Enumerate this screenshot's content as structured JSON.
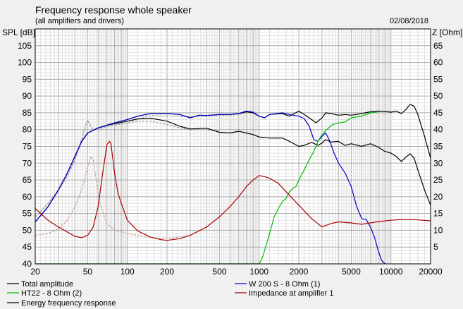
{
  "chart_data": {
    "type": "line",
    "title": "Frequency response whole speaker",
    "subtitle": "(all amplifiers and drivers)",
    "date": "02/08/2018",
    "ylabel_left": "SPL [dB]",
    "ylabel_right": "Z [Ohm]",
    "x_scale": "log",
    "xlim": [
      20,
      20000
    ],
    "ylim_left": [
      40,
      110
    ],
    "ylim_right": [
      0,
      70
    ],
    "x_ticks": [
      20,
      50,
      100,
      200,
      500,
      1000,
      2000,
      5000,
      10000,
      20000
    ],
    "x_tick_labels": [
      "20",
      "50",
      "100",
      "200",
      "500",
      "1000",
      "2000",
      "5000",
      "10000",
      "20000"
    ],
    "y_left_ticks": [
      40,
      45,
      50,
      55,
      60,
      65,
      70,
      75,
      80,
      85,
      90,
      95,
      100,
      105
    ],
    "y_right_ticks": [
      5,
      10,
      15,
      20,
      25,
      30,
      35,
      40,
      45,
      50,
      55,
      60,
      65
    ],
    "grid": true,
    "legend_position": "bottom",
    "series": [
      {
        "name": "Total amplitude",
        "color": "#000000",
        "axis": "left",
        "points": [
          [
            20,
            52.5
          ],
          [
            25,
            57
          ],
          [
            30,
            62
          ],
          [
            35,
            67
          ],
          [
            40,
            72
          ],
          [
            45,
            76.5
          ],
          [
            50,
            79
          ],
          [
            60,
            80.5
          ],
          [
            70,
            81.3
          ],
          [
            80,
            82
          ],
          [
            100,
            83
          ],
          [
            120,
            84
          ],
          [
            150,
            84.8
          ],
          [
            200,
            84.8
          ],
          [
            250,
            84.5
          ],
          [
            300,
            83.5
          ],
          [
            350,
            84.3
          ],
          [
            400,
            84.2
          ],
          [
            500,
            84.5
          ],
          [
            600,
            84.5
          ],
          [
            700,
            84.8
          ],
          [
            800,
            85.3
          ],
          [
            900,
            85
          ],
          [
            1000,
            84
          ],
          [
            1100,
            83.5
          ],
          [
            1200,
            84.5
          ],
          [
            1500,
            84.8
          ],
          [
            1700,
            84
          ],
          [
            2000,
            85.5
          ],
          [
            2200,
            84.5
          ],
          [
            2500,
            83
          ],
          [
            2700,
            82
          ],
          [
            3000,
            83.5
          ],
          [
            3200,
            85
          ],
          [
            3500,
            84.8
          ],
          [
            4000,
            84.3
          ],
          [
            4500,
            84.5
          ],
          [
            5000,
            84.3
          ],
          [
            6000,
            84.8
          ],
          [
            7000,
            85.3
          ],
          [
            8000,
            85.5
          ],
          [
            9000,
            85.4
          ],
          [
            10000,
            85.2
          ],
          [
            11000,
            85.5
          ],
          [
            12000,
            84.8
          ],
          [
            13000,
            86
          ],
          [
            14000,
            87.5
          ],
          [
            15000,
            87
          ],
          [
            16000,
            84.5
          ],
          [
            18000,
            78
          ],
          [
            20000,
            71.5
          ]
        ]
      },
      {
        "name": "W 200 S - 8 Ohm (1)",
        "color": "#0000cc",
        "axis": "left",
        "points": [
          [
            20,
            52.5
          ],
          [
            25,
            57
          ],
          [
            30,
            62
          ],
          [
            35,
            67
          ],
          [
            40,
            72
          ],
          [
            45,
            76.5
          ],
          [
            50,
            79
          ],
          [
            60,
            80.5
          ],
          [
            70,
            81.3
          ],
          [
            80,
            82
          ],
          [
            100,
            83
          ],
          [
            120,
            84
          ],
          [
            150,
            84.8
          ],
          [
            200,
            84.8
          ],
          [
            250,
            84.5
          ],
          [
            300,
            83.5
          ],
          [
            350,
            84.3
          ],
          [
            400,
            84.2
          ],
          [
            500,
            84.5
          ],
          [
            600,
            84.5
          ],
          [
            700,
            84.8
          ],
          [
            800,
            85.5
          ],
          [
            900,
            85.2
          ],
          [
            1000,
            84
          ],
          [
            1100,
            83.5
          ],
          [
            1200,
            84.5
          ],
          [
            1500,
            85
          ],
          [
            1700,
            84.5
          ],
          [
            2000,
            84
          ],
          [
            2200,
            83.3
          ],
          [
            2400,
            81
          ],
          [
            2600,
            77
          ],
          [
            2800,
            76.5
          ],
          [
            3000,
            78
          ],
          [
            3200,
            79
          ],
          [
            3400,
            77
          ],
          [
            3700,
            73
          ],
          [
            4000,
            70
          ],
          [
            4500,
            67
          ],
          [
            5000,
            63
          ],
          [
            5500,
            57
          ],
          [
            6000,
            53.5
          ],
          [
            6500,
            53.2
          ],
          [
            7000,
            51
          ],
          [
            7500,
            48
          ],
          [
            8000,
            44
          ],
          [
            8500,
            41
          ],
          [
            9000,
            40
          ]
        ]
      },
      {
        "name": "HT22 - 8 Ohm (2)",
        "color": "#00bb00",
        "axis": "left",
        "points": [
          [
            20,
            40
          ],
          [
            1000,
            40
          ],
          [
            1050,
            41.5
          ],
          [
            1100,
            44
          ],
          [
            1200,
            49
          ],
          [
            1300,
            54
          ],
          [
            1400,
            56.5
          ],
          [
            1500,
            58.5
          ],
          [
            1600,
            59.5
          ],
          [
            1700,
            61.5
          ],
          [
            1800,
            62.5
          ],
          [
            1900,
            63
          ],
          [
            2000,
            65
          ],
          [
            2200,
            68
          ],
          [
            2400,
            71
          ],
          [
            2600,
            73.5
          ],
          [
            2800,
            76.5
          ],
          [
            3000,
            78.5
          ],
          [
            3300,
            80.2
          ],
          [
            3600,
            81.5
          ],
          [
            4000,
            82
          ],
          [
            4500,
            82.3
          ],
          [
            5000,
            83.5
          ],
          [
            6000,
            84
          ],
          [
            7000,
            85
          ],
          [
            8000,
            85.3
          ]
        ]
      },
      {
        "name": "Impedance at amplifier 1",
        "color": "#aa0000",
        "axis": "right",
        "points": [
          [
            20,
            16.5
          ],
          [
            25,
            13
          ],
          [
            30,
            11
          ],
          [
            35,
            9.5
          ],
          [
            40,
            8.2
          ],
          [
            45,
            7.8
          ],
          [
            50,
            8.5
          ],
          [
            55,
            11
          ],
          [
            60,
            17
          ],
          [
            65,
            27
          ],
          [
            70,
            35.5
          ],
          [
            73,
            36.5
          ],
          [
            75,
            36
          ],
          [
            80,
            27
          ],
          [
            85,
            21
          ],
          [
            90,
            18
          ],
          [
            100,
            13
          ],
          [
            120,
            9.8
          ],
          [
            150,
            8
          ],
          [
            180,
            7.2
          ],
          [
            200,
            7
          ],
          [
            250,
            7.5
          ],
          [
            300,
            8.5
          ],
          [
            400,
            11
          ],
          [
            500,
            14
          ],
          [
            600,
            17
          ],
          [
            700,
            20
          ],
          [
            800,
            23
          ],
          [
            900,
            25
          ],
          [
            1000,
            26.3
          ],
          [
            1100,
            26
          ],
          [
            1200,
            25.5
          ],
          [
            1400,
            24
          ],
          [
            1600,
            21.5
          ],
          [
            2000,
            17.5
          ],
          [
            2500,
            13.5
          ],
          [
            3000,
            11
          ],
          [
            3500,
            12
          ],
          [
            4000,
            12.5
          ],
          [
            5000,
            12.2
          ],
          [
            6000,
            11.8
          ],
          [
            7000,
            12.2
          ],
          [
            8000,
            12.6
          ],
          [
            10000,
            13
          ],
          [
            12000,
            13.2
          ],
          [
            15000,
            13.2
          ],
          [
            20000,
            12.8
          ]
        ]
      },
      {
        "name": "Energy frequency response",
        "color": "#000000",
        "axis": "left",
        "points": [
          [
            20,
            52.5
          ],
          [
            25,
            57
          ],
          [
            30,
            62
          ],
          [
            35,
            67
          ],
          [
            40,
            72
          ],
          [
            45,
            76.5
          ],
          [
            50,
            79
          ],
          [
            60,
            80.5
          ],
          [
            70,
            81.3
          ],
          [
            80,
            81.8
          ],
          [
            100,
            82.5
          ],
          [
            120,
            83.2
          ],
          [
            150,
            83.4
          ],
          [
            200,
            82.5
          ],
          [
            250,
            81
          ],
          [
            300,
            80.2
          ],
          [
            400,
            80.4
          ],
          [
            500,
            79.2
          ],
          [
            600,
            79
          ],
          [
            700,
            79.5
          ],
          [
            800,
            79
          ],
          [
            900,
            78.5
          ],
          [
            1000,
            77.8
          ],
          [
            1200,
            77.5
          ],
          [
            1500,
            77.5
          ],
          [
            1700,
            76.5
          ],
          [
            2000,
            75
          ],
          [
            2200,
            75.3
          ],
          [
            2500,
            76.2
          ],
          [
            2800,
            75.3
          ],
          [
            3000,
            76
          ],
          [
            3200,
            77
          ],
          [
            3500,
            76.3
          ],
          [
            4000,
            76.5
          ],
          [
            4500,
            75.3
          ],
          [
            5000,
            75.8
          ],
          [
            6000,
            75
          ],
          [
            7000,
            75.8
          ],
          [
            8000,
            74.8
          ],
          [
            9000,
            73.5
          ],
          [
            10000,
            73
          ],
          [
            11000,
            72
          ],
          [
            12000,
            70.5
          ],
          [
            13000,
            71.8
          ],
          [
            14000,
            72.8
          ],
          [
            15000,
            71.5
          ],
          [
            16000,
            68
          ],
          [
            18000,
            62
          ],
          [
            20000,
            57.5
          ]
        ]
      },
      {
        "color": "#999999",
        "dashed": true,
        "axis": "left",
        "points": [
          [
            20,
            54
          ],
          [
            25,
            58
          ],
          [
            30,
            62
          ],
          [
            35,
            66
          ],
          [
            40,
            71
          ],
          [
            45,
            77
          ],
          [
            48,
            81
          ],
          [
            50,
            82.8
          ],
          [
            52,
            81.5
          ],
          [
            55,
            80
          ],
          [
            60,
            80
          ],
          [
            70,
            81
          ],
          [
            80,
            81.5
          ],
          [
            100,
            82.5
          ],
          [
            120,
            83
          ],
          [
            150,
            84.2
          ],
          [
            200,
            84
          ],
          [
            250,
            84
          ],
          [
            300,
            83.8
          ],
          [
            400,
            84
          ],
          [
            500,
            84.2
          ],
          [
            700,
            84.5
          ],
          [
            800,
            85
          ]
        ]
      },
      {
        "color": "#999999",
        "dashed": true,
        "axis": "left",
        "points": [
          [
            20,
            54
          ],
          [
            25,
            58
          ],
          [
            30,
            62
          ],
          [
            35,
            66
          ],
          [
            40,
            71
          ],
          [
            45,
            77
          ],
          [
            48,
            81
          ],
          [
            50,
            82.8
          ],
          [
            52,
            81.5
          ],
          [
            55,
            80
          ],
          [
            60,
            80
          ],
          [
            70,
            81
          ],
          [
            80,
            81.3
          ],
          [
            100,
            82
          ],
          [
            120,
            82.5
          ],
          [
            150,
            82.5
          ],
          [
            200,
            81.5
          ],
          [
            250,
            80.5
          ],
          [
            300,
            80
          ],
          [
            400,
            80
          ],
          [
            500,
            79.5
          ]
        ]
      },
      {
        "color": "#cc9999",
        "dashed": true,
        "axis": "right",
        "points": [
          [
            20,
            8.5
          ],
          [
            25,
            9
          ],
          [
            30,
            10.5
          ],
          [
            35,
            13
          ],
          [
            40,
            17
          ],
          [
            45,
            22
          ],
          [
            50,
            29
          ],
          [
            53,
            32
          ],
          [
            55,
            31
          ],
          [
            58,
            25
          ],
          [
            62,
            18
          ],
          [
            70,
            12
          ],
          [
            80,
            10
          ],
          [
            100,
            9
          ],
          [
            120,
            8.5
          ],
          [
            150,
            7.8
          ],
          [
            200,
            7.5
          ],
          [
            300,
            8.5
          ],
          [
            400,
            11
          ]
        ]
      }
    ]
  }
}
